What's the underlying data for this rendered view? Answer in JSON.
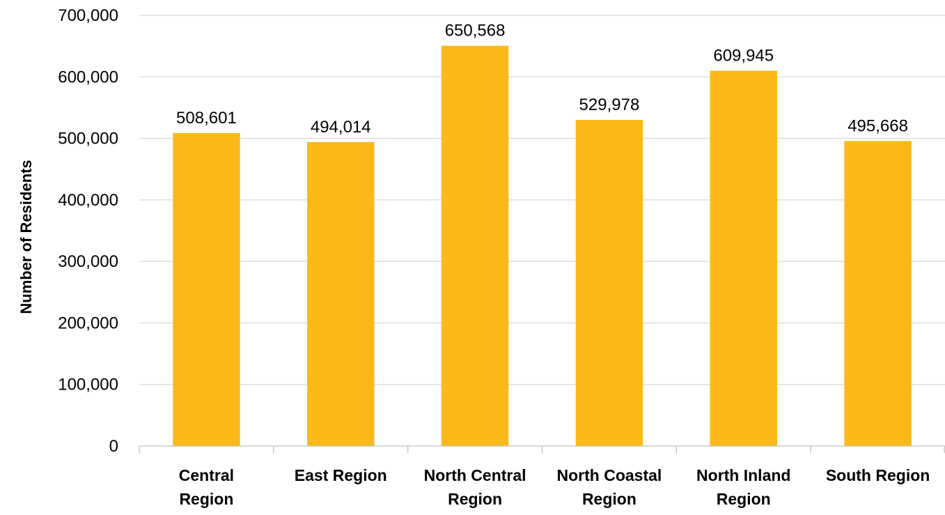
{
  "chart_data": {
    "type": "bar",
    "title": "",
    "xlabel": "",
    "ylabel": "Number of Residents",
    "categories": [
      [
        "Central",
        "Region"
      ],
      [
        "East Region"
      ],
      [
        "North Central",
        "Region"
      ],
      [
        "North Coastal",
        "Region"
      ],
      [
        "North Inland",
        "Region"
      ],
      [
        "South Region"
      ]
    ],
    "values": [
      508601,
      494014,
      650568,
      529978,
      609945,
      495668
    ],
    "value_labels": [
      "508,601",
      "494,014",
      "650,568",
      "529,978",
      "609,945",
      "495,668"
    ],
    "ylim": [
      0,
      700000
    ],
    "yticks": [
      0,
      100000,
      200000,
      300000,
      400000,
      500000,
      600000,
      700000
    ],
    "ytick_labels": [
      "0",
      "100,000",
      "200,000",
      "300,000",
      "400,000",
      "500,000",
      "600,000",
      "700,000"
    ],
    "grid": true,
    "legend": "none",
    "colors": {
      "bar": "#FBB918",
      "grid": "#D9D9D9",
      "axis": "#BFBFBF",
      "text": "#000000"
    }
  }
}
